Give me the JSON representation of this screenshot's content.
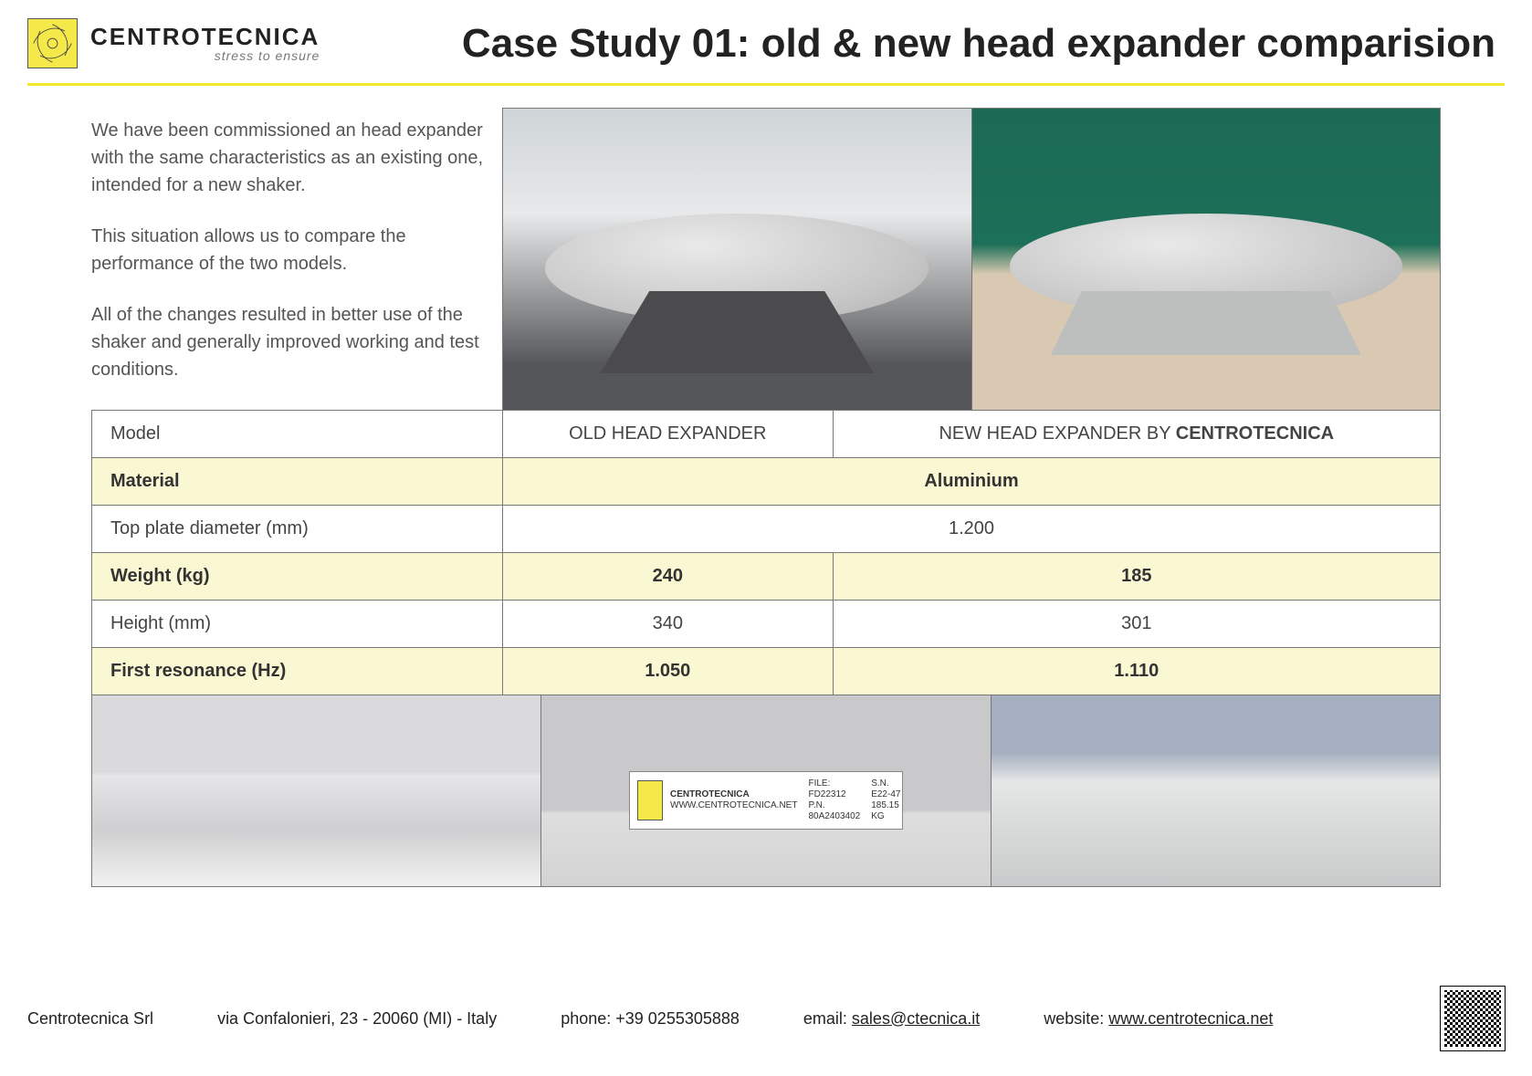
{
  "brand": {
    "name": "CENTROTECNICA",
    "tagline": "stress to ensure"
  },
  "title": "Case Study 01: old & new head expander comparision",
  "intro": {
    "p1": "We have been commissioned an head expander with the same characteristics as an existing one, intended for a new shaker.",
    "p2": "This situation allows us to compare the performance of the two models.",
    "p3": "All of the changes resulted in better use of the shaker and generally improved working and test conditions."
  },
  "table": {
    "header": {
      "label": "Model",
      "old": "OLD HEAD EXPANDER",
      "new_prefix": "NEW HEAD EXPANDER BY ",
      "new_brand": "CENTROTECNICA"
    },
    "rows": [
      {
        "label": "Material",
        "merged": "Aluminium",
        "highlight": true
      },
      {
        "label": "Top plate diameter (mm)",
        "merged": "1.200",
        "highlight": false
      },
      {
        "label": "Weight (kg)",
        "old": "240",
        "new": "185",
        "highlight": true
      },
      {
        "label": "Height (mm)",
        "old": "340",
        "new": "301",
        "highlight": false
      },
      {
        "label": "First resonance (Hz)",
        "old": "1.050",
        "new": "1.110",
        "highlight": true
      }
    ]
  },
  "plate": {
    "brand": "CENTROTECNICA",
    "site": "WWW.CENTROTECNICA.NET",
    "file": "FILE: FD22312",
    "pn": "P.N. 80A2403402",
    "sn": "S.N. E22-47",
    "wt": "185.15 KG"
  },
  "footer": {
    "company": "Centrotecnica Srl",
    "address": "via Confalonieri, 23 - 20060 (MI) - Italy",
    "phone": "phone: +39 0255305888",
    "email_label": "email: ",
    "email": "sales@ctecnica.it",
    "website_label": "website: ",
    "website": "www.centrotecnica.net"
  },
  "colors": {
    "accent": "#f2e82e",
    "row_highlight": "#faf7d3",
    "border": "#777777"
  }
}
